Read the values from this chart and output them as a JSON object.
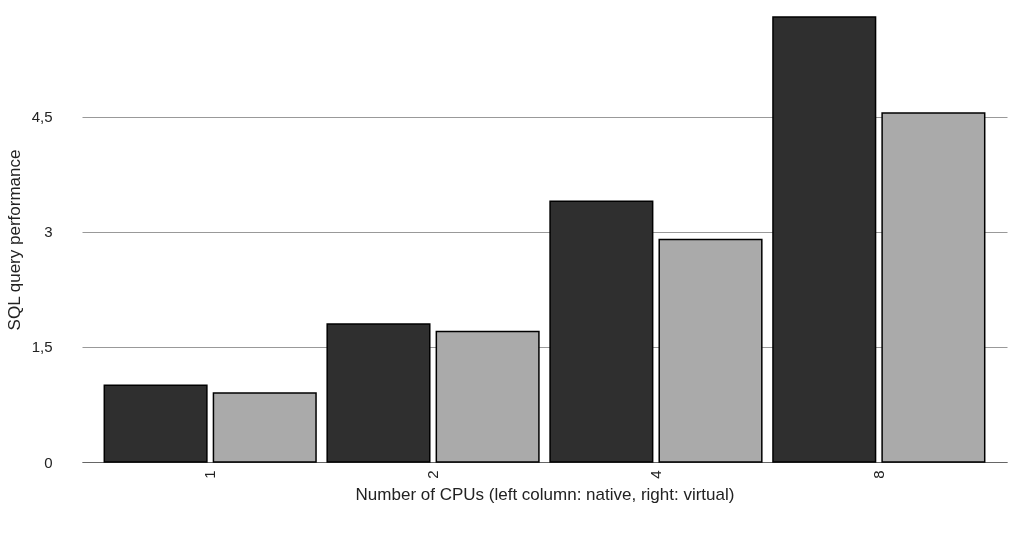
{
  "chart_data": {
    "type": "bar",
    "xlabel": "Number of CPUs (left column: native, right: virtual)",
    "ylabel": "SQL query performance",
    "categories": [
      "1",
      "2",
      "4",
      "8"
    ],
    "series": [
      {
        "color": "#2f2f2f",
        "values": [
          1.0,
          1.8,
          3.4,
          5.8
        ]
      },
      {
        "color": "#aaaaaa",
        "values": [
          0.9,
          1.7,
          2.9,
          4.55
        ]
      }
    ],
    "ylim": [
      0,
      5.8
    ],
    "yticks": [
      {
        "value": 0,
        "label": "0"
      },
      {
        "value": 1.5,
        "label": "1,5"
      },
      {
        "value": 3,
        "label": "3"
      },
      {
        "value": 4.5,
        "label": "4,5"
      }
    ],
    "grid": "y",
    "legend": false
  }
}
